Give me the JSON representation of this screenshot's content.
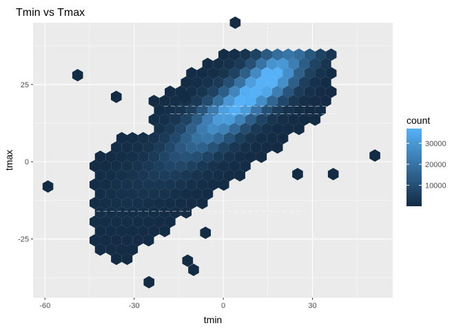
{
  "chart_data": {
    "type": "hexbin",
    "title": "Tmin vs Tmax",
    "xlabel": "tmin",
    "ylabel": "tmax",
    "xlim": [
      -64,
      57
    ],
    "ylim": [
      -44,
      45
    ],
    "x_ticks": [
      -60,
      -30,
      0,
      30
    ],
    "y_ticks": [
      -25,
      0,
      25
    ],
    "grid": true,
    "legend": {
      "title": "count",
      "position": "right",
      "ticks": [
        10000,
        20000,
        30000
      ],
      "range": [
        1,
        37000
      ],
      "color_low": "#132B43",
      "color_high": "#56B1F7"
    },
    "density_ridge": [
      {
        "x": -30,
        "y": -18,
        "count": 400
      },
      {
        "x": -20,
        "y": -10,
        "count": 2500
      },
      {
        "x": -10,
        "y": -2,
        "count": 7000
      },
      {
        "x": 0,
        "y": 5,
        "count": 16000
      },
      {
        "x": 5,
        "y": 12,
        "count": 22000
      },
      {
        "x": 10,
        "y": 19,
        "count": 26000
      },
      {
        "x": 15,
        "y": 25,
        "count": 33000
      },
      {
        "x": 17,
        "y": 28,
        "count": 37000
      },
      {
        "x": 22,
        "y": 32,
        "count": 6000
      }
    ],
    "outliers": [
      {
        "x": -59,
        "y": -8
      },
      {
        "x": -49,
        "y": 28
      },
      {
        "x": -36,
        "y": 21
      },
      {
        "x": -25,
        "y": -39
      },
      {
        "x": -13,
        "y": 21
      },
      {
        "x": -12,
        "y": -32
      },
      {
        "x": -10,
        "y": -35
      },
      {
        "x": -6,
        "y": -23
      },
      {
        "x": 4,
        "y": 45
      },
      {
        "x": 51,
        "y": 2
      },
      {
        "x": 37,
        "y": -4
      },
      {
        "x": 25,
        "y": -4
      }
    ]
  }
}
